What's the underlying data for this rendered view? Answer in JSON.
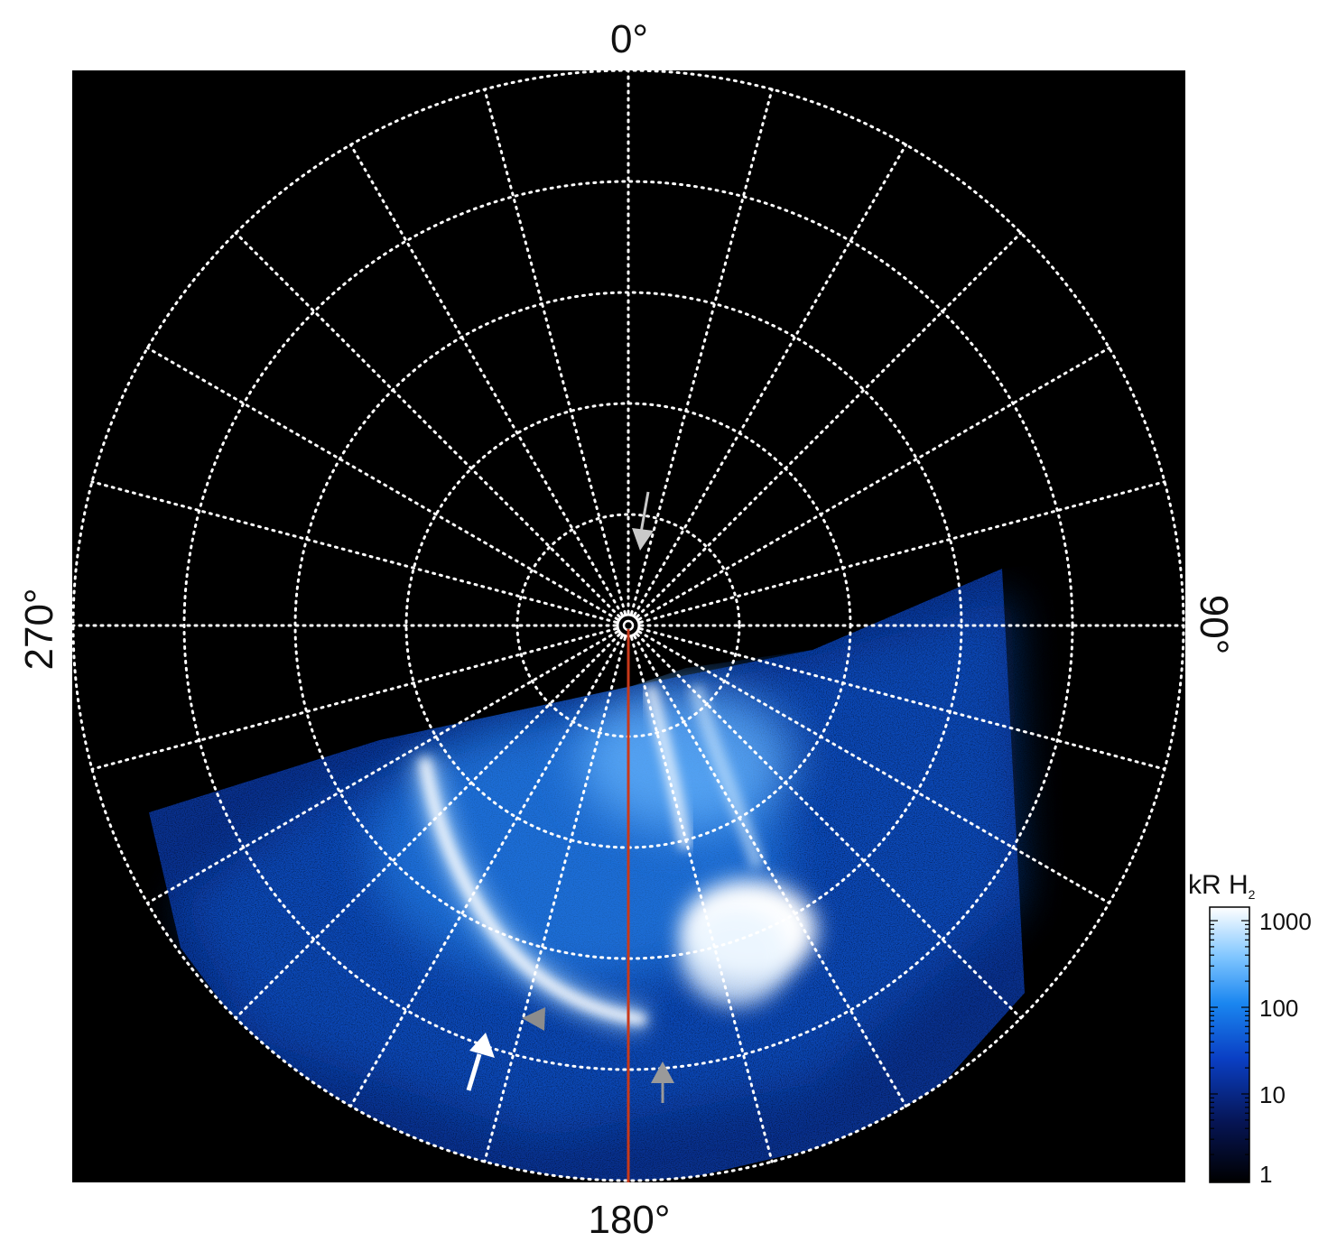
{
  "figure": {
    "labels": {
      "top": "0°",
      "bottom": "180°",
      "left": "270°",
      "right": "90°"
    },
    "colorbar": {
      "title": "kR H",
      "title_subscript": "2",
      "ticks": [
        "1000",
        "100",
        "10",
        "1"
      ],
      "scale": "log",
      "range": [
        1,
        1500
      ],
      "colors": [
        "#000000",
        "#0a1a7a",
        "#0b4fd0",
        "#1e90ff",
        "#7cc4ff",
        "#ffffff"
      ]
    },
    "grid": {
      "style": "dotted",
      "color": "#ffffff",
      "meridian_spacing_deg": 15,
      "parallel_rings": 5
    },
    "colors": {
      "background": "#000000",
      "meridian_line": "#c8391a",
      "arrow_white": "#ffffff",
      "arrow_gray": "#9a9a9a"
    }
  }
}
